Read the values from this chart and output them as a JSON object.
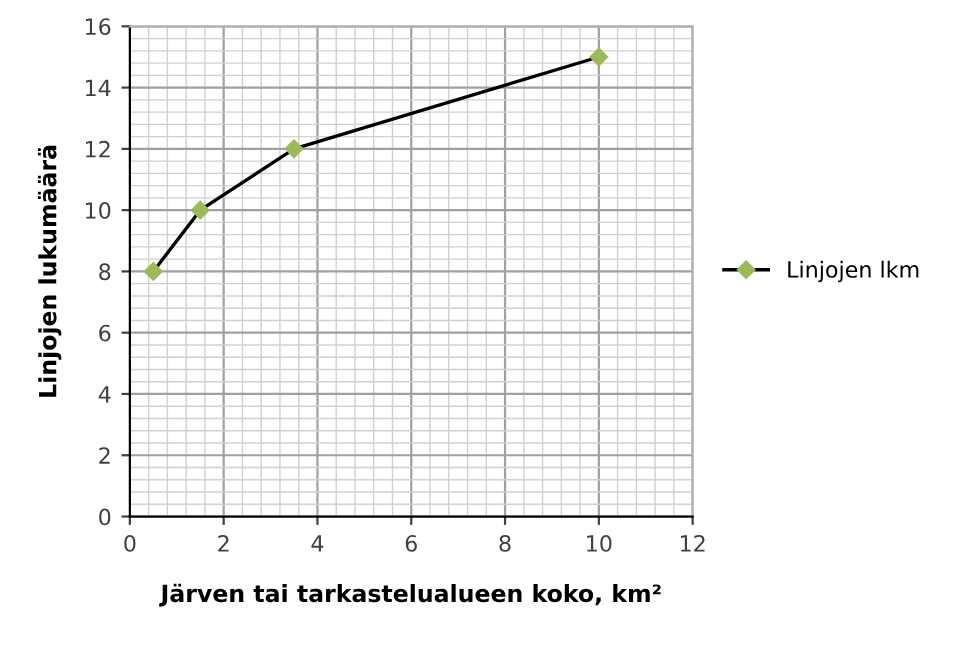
{
  "chart_data": {
    "type": "line",
    "xlabel": "Järven tai tarkastelualueen koko, km²",
    "ylabel": "Linjojen lukumäärä",
    "x": [
      0.5,
      1.5,
      3.5,
      10
    ],
    "series": [
      {
        "name": "Linjojen lkm",
        "color": "#000000",
        "values": [
          8,
          10,
          12,
          15
        ]
      }
    ],
    "xlim": [
      0,
      12
    ],
    "xticks": [
      0,
      2,
      4,
      6,
      8,
      10,
      12
    ],
    "ylim": [
      0,
      16
    ],
    "yticks": [
      0,
      2,
      4,
      6,
      8,
      10,
      12,
      14,
      16
    ],
    "grid": true,
    "legend": "right",
    "marker": "diamond",
    "line_style": "solid"
  }
}
